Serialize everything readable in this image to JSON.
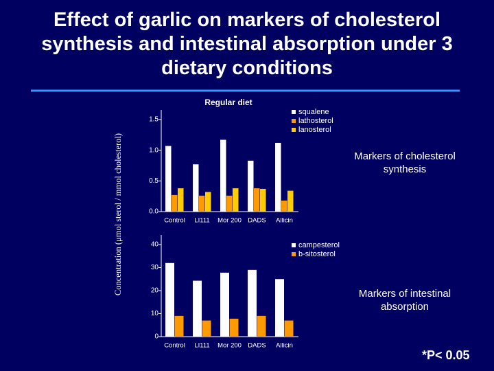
{
  "title": "Effect of garlic on markers of cholesterol synthesis and intestinal absorption under 3 dietary conditions",
  "y_axis_label": "Concentration (μmol sterol / mmol cholesterol)",
  "footnote": "*P< 0.05",
  "chart_data": [
    {
      "type": "bar",
      "subtitle": "Regular diet",
      "annotation": "Markers of cholesterol synthesis",
      "categories": [
        "Control",
        "LI111",
        "Mor 200",
        "DADS",
        "Allicin"
      ],
      "series": [
        {
          "name": "squalene",
          "color": "#ffffff",
          "values": [
            1.07,
            0.77,
            1.17,
            0.83,
            1.12
          ]
        },
        {
          "name": "lathosterol",
          "color": "#ff9900",
          "values": [
            0.27,
            0.26,
            0.26,
            0.38,
            0.18
          ]
        },
        {
          "name": "lanosterol",
          "color": "#ffcc00",
          "values": [
            0.38,
            0.32,
            0.38,
            0.37,
            0.34
          ]
        }
      ],
      "ylim": [
        0,
        1.5
      ],
      "yticks": [
        {
          "value": 0,
          "label": "0.0"
        },
        {
          "value": 0.5,
          "label": "0.5"
        },
        {
          "value": 1,
          "label": "1.0"
        },
        {
          "value": 1.5,
          "label": "1.5"
        }
      ]
    },
    {
      "type": "bar",
      "annotation": "Markers of intestinal absorption",
      "categories": [
        "Control",
        "LI111",
        "Mor 200",
        "DADS",
        "Allicin"
      ],
      "series": [
        {
          "name": "campesterol",
          "color": "#ffffff",
          "values": [
            32,
            24.3,
            27.8,
            29,
            25
          ]
        },
        {
          "name": "b-sitosterol",
          "color": "#ff9900",
          "values": [
            9,
            7,
            7.8,
            9,
            7
          ]
        }
      ],
      "ylim": [
        0,
        40
      ],
      "yticks": [
        0,
        10,
        20,
        30,
        40
      ]
    }
  ]
}
